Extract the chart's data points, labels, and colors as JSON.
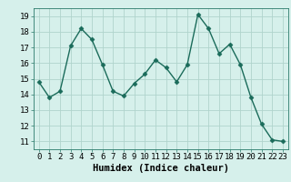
{
  "x": [
    0,
    1,
    2,
    3,
    4,
    5,
    6,
    7,
    8,
    9,
    10,
    11,
    12,
    13,
    14,
    15,
    16,
    17,
    18,
    19,
    20,
    21,
    22,
    23
  ],
  "y": [
    14.8,
    13.8,
    14.2,
    17.1,
    18.2,
    17.5,
    15.9,
    14.2,
    13.9,
    14.7,
    15.3,
    16.2,
    15.7,
    14.8,
    15.9,
    19.1,
    18.2,
    16.6,
    17.2,
    15.9,
    13.8,
    12.1,
    11.1,
    11.0
  ],
  "line_color": "#1a6b5a",
  "marker": "D",
  "marker_size": 2.5,
  "bg_color": "#d6f0eb",
  "grid_color": "#b0d4cc",
  "xlabel": "Humidex (Indice chaleur)",
  "xlabel_fontsize": 7.5,
  "xlim": [
    -0.5,
    23.5
  ],
  "ylim": [
    10.5,
    19.5
  ],
  "yticks": [
    11,
    12,
    13,
    14,
    15,
    16,
    17,
    18,
    19
  ],
  "xticks": [
    0,
    1,
    2,
    3,
    4,
    5,
    6,
    7,
    8,
    9,
    10,
    11,
    12,
    13,
    14,
    15,
    16,
    17,
    18,
    19,
    20,
    21,
    22,
    23
  ],
  "tick_fontsize": 6.5,
  "line_width": 1.0
}
